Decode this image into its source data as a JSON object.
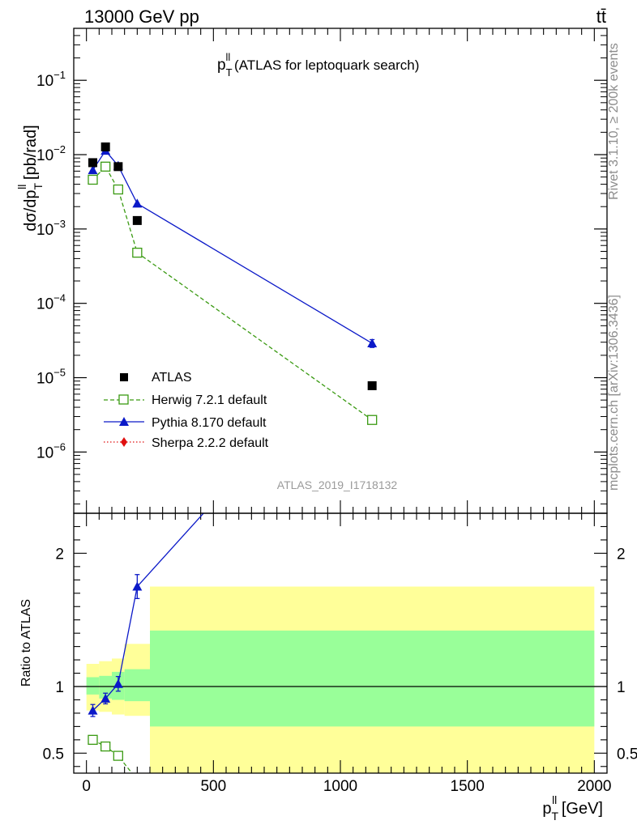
{
  "header": {
    "left": "13000 GeV pp",
    "right": "tt̄"
  },
  "side_labels": {
    "rivet": "Rivet 3.1.10, ≥ 200k events",
    "mcplots": "mcplots.cern.ch [arXiv:1306.3436]"
  },
  "chart_data": [
    {
      "type": "scatter",
      "panel": "main",
      "title": "p_T^ll (ATLAS for leptoquark search)",
      "title_parts": {
        "p": "p",
        "sub": "T",
        "sup": "ll",
        "rest": " (ATLAS for leptoquark search)"
      },
      "ylabel": "dσ/dp_T^ll [pb/rad]",
      "ylabel_parts": {
        "a": "dσ/dp",
        "sub": "T",
        "sup": "ll",
        "b": " [pb/rad]"
      },
      "watermark": "ATLAS_2019_I1718132",
      "yscale": "log",
      "xlim": [
        -50,
        2050
      ],
      "ylim": [
        1.5e-07,
        0.5
      ],
      "ytick_values": [
        1e-06,
        1e-05,
        0.0001,
        0.001,
        0.01,
        0.1
      ],
      "ytick_labels": [
        {
          "base": "10",
          "exp": "−6"
        },
        {
          "base": "10",
          "exp": "−5"
        },
        {
          "base": "10",
          "exp": "−4"
        },
        {
          "base": "10",
          "exp": "−3"
        },
        {
          "base": "10",
          "exp": "−2"
        },
        {
          "base": "10",
          "exp": "−1"
        }
      ],
      "legend": {
        "placement": "lower-left"
      },
      "series": [
        {
          "name": "ATLAS",
          "color": "#000000",
          "marker": "filled-square",
          "line": "none",
          "x": [
            25,
            75,
            125,
            200,
            1125
          ],
          "y": [
            0.0078,
            0.0127,
            0.0069,
            0.0013,
            7.8e-06
          ]
        },
        {
          "name": "Herwig 7.2.1 default",
          "color": "#3a9a12",
          "marker": "open-square",
          "line": "dashed",
          "x": [
            25,
            75,
            125,
            200,
            1125
          ],
          "y": [
            0.0046,
            0.0069,
            0.0034,
            0.00048,
            2.7e-06
          ],
          "yerr": [
            0,
            0,
            0,
            0,
            3e-07
          ]
        },
        {
          "name": "Pythia 8.170 default",
          "color": "#0b19c8",
          "marker": "filled-triangle",
          "line": "solid",
          "x": [
            25,
            75,
            125,
            200,
            1125
          ],
          "y": [
            0.0062,
            0.0113,
            0.0071,
            0.0022,
            2.9e-05
          ],
          "yerr": [
            0,
            0,
            0,
            0,
            3.5e-06
          ]
        },
        {
          "name": "Sherpa 2.2.2 default",
          "color": "#e01010",
          "marker": "filled-diamond",
          "line": "dotted",
          "x": [],
          "y": []
        }
      ]
    },
    {
      "type": "line",
      "panel": "ratio",
      "ylabel": "Ratio to ATLAS",
      "xlabel": "p_T^ll [GeV]",
      "xlabel_parts": {
        "p": "p",
        "sub": "T",
        "sup": "ll",
        "rest": " [GeV]"
      },
      "xlim": [
        -50,
        2050
      ],
      "ylim": [
        0.35,
        2.3
      ],
      "xticks": [
        0,
        500,
        1000,
        1500,
        2000
      ],
      "yticks": [
        0.5,
        1,
        2
      ],
      "ytick_labels": [
        "0.5",
        "1",
        "2"
      ],
      "reference": 1,
      "bands": [
        {
          "x0": 0,
          "x1": 50,
          "outer": [
            0.82,
            1.17
          ],
          "inner": [
            0.94,
            1.07
          ]
        },
        {
          "x0": 50,
          "x1": 100,
          "outer": [
            0.81,
            1.19
          ],
          "inner": [
            0.91,
            1.08
          ]
        },
        {
          "x0": 100,
          "x1": 150,
          "outer": [
            0.79,
            1.21
          ],
          "inner": [
            0.9,
            1.11
          ]
        },
        {
          "x0": 150,
          "x1": 250,
          "outer": [
            0.78,
            1.32
          ],
          "inner": [
            0.89,
            1.13
          ]
        },
        {
          "x0": 250,
          "x1": 2000,
          "outer": [
            0.35,
            1.75
          ],
          "inner": [
            0.7,
            1.42
          ]
        }
      ],
      "band_colors": {
        "outer": "#ffff99",
        "inner": "#99ff99"
      },
      "series": [
        {
          "name": "Herwig 7.2.1 default",
          "color": "#3a9a12",
          "marker": "open-square",
          "line": "dashed",
          "x": [
            25,
            75,
            125,
            200
          ],
          "y": [
            0.6,
            0.55,
            0.48,
            0.3
          ],
          "yerr": [
            0,
            0,
            0,
            0
          ]
        },
        {
          "name": "Pythia 8.170 default",
          "color": "#0b19c8",
          "marker": "filled-triangle",
          "line": "solid",
          "x": [
            25,
            75,
            125,
            200,
            1125
          ],
          "y": [
            0.82,
            0.91,
            1.02,
            1.75,
            3.7
          ],
          "yerr": [
            0.045,
            0.04,
            0.055,
            0.09,
            0.4
          ]
        }
      ]
    }
  ]
}
